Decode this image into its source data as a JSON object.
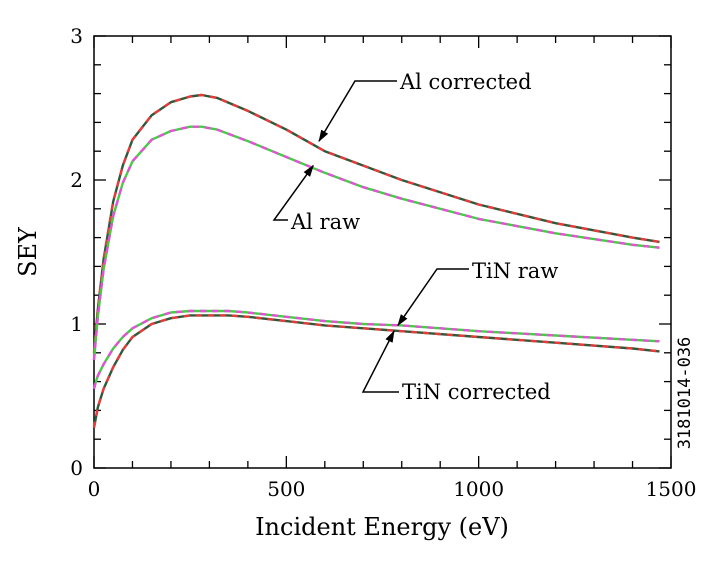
{
  "chart_data": {
    "type": "line",
    "xlabel": "Incident Energy (eV)",
    "ylabel": "SEY",
    "xlim": [
      0,
      1500
    ],
    "ylim": [
      0,
      3
    ],
    "x_ticks": [
      0,
      500,
      1000,
      1500
    ],
    "y_ticks": [
      0,
      1,
      2,
      3
    ],
    "x_tick_labels": [
      "0",
      "500",
      "1000",
      "1500"
    ],
    "y_tick_labels": [
      "0",
      "1",
      "2",
      "3"
    ],
    "grid": false,
    "side_label": "3181014-036",
    "series": [
      {
        "name": "Al corrected",
        "colors": [
          "#2d5a3a",
          "#e83a3a"
        ],
        "x": [
          0,
          5,
          10,
          25,
          50,
          75,
          100,
          150,
          200,
          250,
          280,
          320,
          400,
          500,
          600,
          700,
          800,
          1000,
          1200,
          1400,
          1470
        ],
        "y": [
          0.8,
          0.95,
          1.1,
          1.45,
          1.85,
          2.1,
          2.28,
          2.45,
          2.54,
          2.58,
          2.59,
          2.57,
          2.48,
          2.35,
          2.2,
          2.1,
          2.0,
          1.83,
          1.7,
          1.6,
          1.57
        ]
      },
      {
        "name": "Al raw",
        "colors": [
          "#44cc44",
          "#e64fd8"
        ],
        "x": [
          0,
          5,
          10,
          25,
          50,
          75,
          100,
          150,
          200,
          250,
          280,
          320,
          400,
          500,
          600,
          700,
          800,
          1000,
          1200,
          1400,
          1470
        ],
        "y": [
          0.75,
          0.9,
          1.05,
          1.38,
          1.75,
          1.98,
          2.13,
          2.28,
          2.34,
          2.37,
          2.37,
          2.35,
          2.27,
          2.16,
          2.05,
          1.95,
          1.87,
          1.73,
          1.63,
          1.55,
          1.53
        ]
      },
      {
        "name": "TiN raw",
        "colors": [
          "#44cc44",
          "#e64fd8"
        ],
        "x": [
          0,
          5,
          10,
          25,
          50,
          75,
          100,
          150,
          200,
          250,
          300,
          350,
          400,
          500,
          600,
          700,
          800,
          1000,
          1200,
          1400,
          1470
        ],
        "y": [
          0.55,
          0.6,
          0.64,
          0.72,
          0.83,
          0.91,
          0.97,
          1.04,
          1.08,
          1.09,
          1.09,
          1.09,
          1.08,
          1.05,
          1.02,
          1.0,
          0.99,
          0.95,
          0.92,
          0.89,
          0.88
        ]
      },
      {
        "name": "TiN corrected",
        "colors": [
          "#2d5a3a",
          "#e83a3a"
        ],
        "x": [
          0,
          5,
          10,
          25,
          50,
          75,
          100,
          150,
          200,
          250,
          300,
          350,
          400,
          500,
          600,
          700,
          800,
          1000,
          1200,
          1400,
          1470
        ],
        "y": [
          0.28,
          0.35,
          0.42,
          0.55,
          0.7,
          0.82,
          0.91,
          1.0,
          1.04,
          1.06,
          1.06,
          1.06,
          1.05,
          1.02,
          0.99,
          0.97,
          0.95,
          0.91,
          0.87,
          0.83,
          0.81
        ]
      }
    ],
    "annotations": [
      {
        "text": "Al corrected",
        "target": [
          585,
          2.27
        ]
      },
      {
        "text": "Al raw",
        "target": [
          570,
          2.1
        ]
      },
      {
        "text": "TiN raw",
        "target": [
          790,
          0.99
        ]
      },
      {
        "text": "TiN corrected",
        "target": [
          780,
          0.95
        ]
      }
    ]
  }
}
